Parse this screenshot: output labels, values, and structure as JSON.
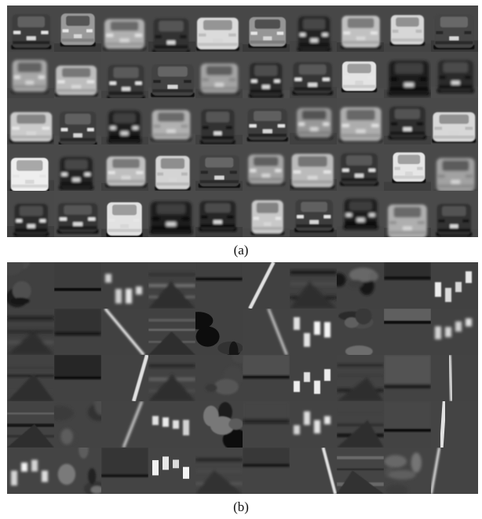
{
  "figure": {
    "panel_a": {
      "label": "(a)",
      "rows": 5,
      "columns": 10,
      "content": "vehicle"
    },
    "panel_b": {
      "label": "(b)",
      "rows": 5,
      "columns": 10,
      "content": "non-vehicle"
    }
  }
}
